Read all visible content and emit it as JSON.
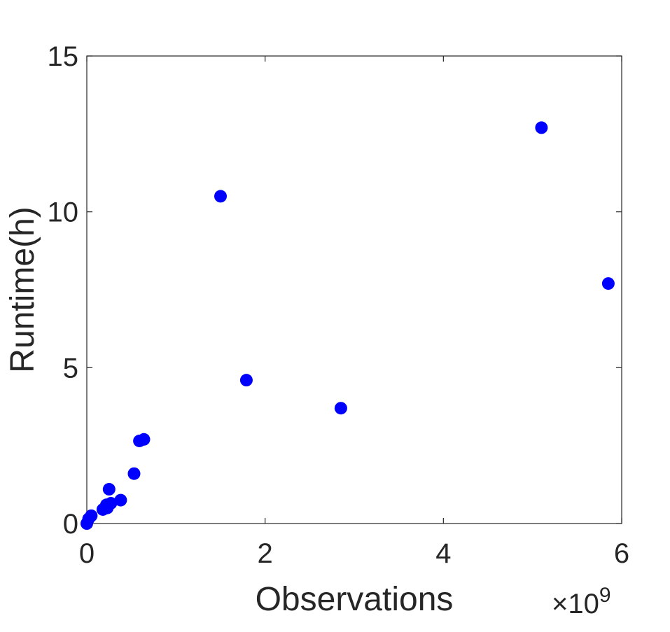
{
  "chart_data": {
    "type": "scatter",
    "xlabel": "Observations",
    "ylabel": "Runtime(h)",
    "x_exponent_prefix": "×10",
    "x_exponent_power": "9",
    "xlim": [
      0,
      6
    ],
    "ylim": [
      0,
      15
    ],
    "xticks": [
      0,
      2,
      4,
      6
    ],
    "yticks": [
      0,
      5,
      10,
      15
    ],
    "grid": false,
    "marker_color": "#0000ff",
    "points": [
      {
        "x": 0.0,
        "y": 0.0
      },
      {
        "x": 0.02,
        "y": 0.15
      },
      {
        "x": 0.05,
        "y": 0.25
      },
      {
        "x": 0.18,
        "y": 0.45
      },
      {
        "x": 0.22,
        "y": 0.6
      },
      {
        "x": 0.23,
        "y": 0.5
      },
      {
        "x": 0.25,
        "y": 1.1
      },
      {
        "x": 0.27,
        "y": 0.65
      },
      {
        "x": 0.38,
        "y": 0.75
      },
      {
        "x": 0.53,
        "y": 1.6
      },
      {
        "x": 0.59,
        "y": 2.65
      },
      {
        "x": 0.64,
        "y": 2.7
      },
      {
        "x": 1.5,
        "y": 10.5
      },
      {
        "x": 1.79,
        "y": 4.6
      },
      {
        "x": 2.85,
        "y": 3.7
      },
      {
        "x": 5.1,
        "y": 12.7
      },
      {
        "x": 5.85,
        "y": 7.7
      }
    ]
  }
}
